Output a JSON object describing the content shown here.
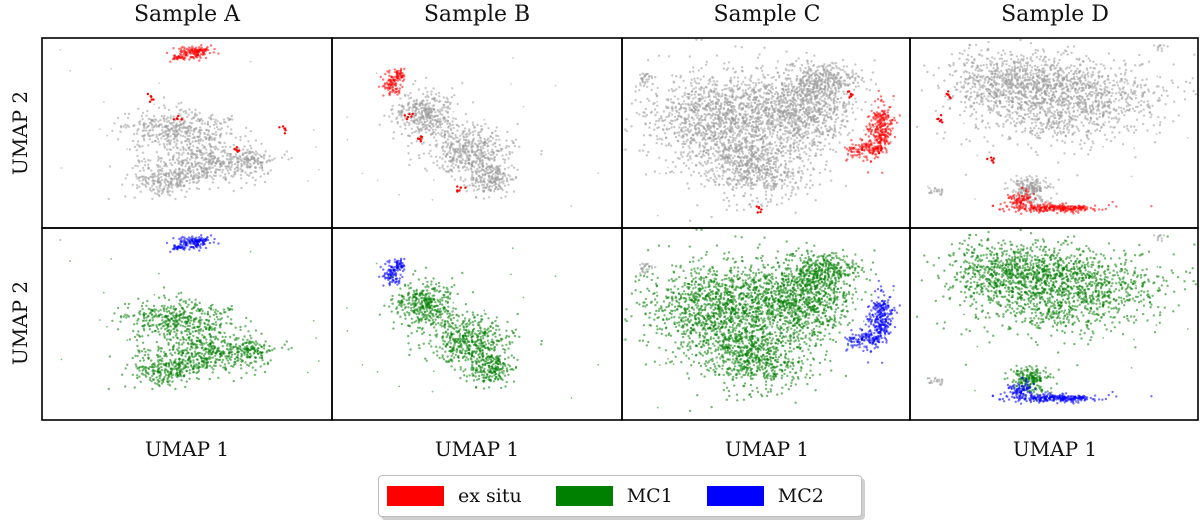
{
  "chart_data": {
    "type": "scatter",
    "panels_columns": [
      "Sample A",
      "Sample B",
      "Sample C",
      "Sample D"
    ],
    "row_ylabels": [
      "UMAP 2",
      "UMAP 2"
    ],
    "xlabel": "UMAP 1",
    "legend": [
      {
        "name": "ex situ",
        "color": "#ff0000"
      },
      {
        "name": "MC1",
        "color": "#008000"
      },
      {
        "name": "MC2",
        "color": "#0000ff"
      }
    ],
    "legend_position": "bottom-center",
    "row_coloring": [
      "ex situ highlighted in red, other cells grey",
      "MC1 green, MC2 blue"
    ],
    "ticks": "none",
    "grid": false,
    "colors": {
      "gray": "#9a9a9a",
      "red": "#ff0000",
      "green": "#008000",
      "blue": "#0000ff"
    }
  }
}
